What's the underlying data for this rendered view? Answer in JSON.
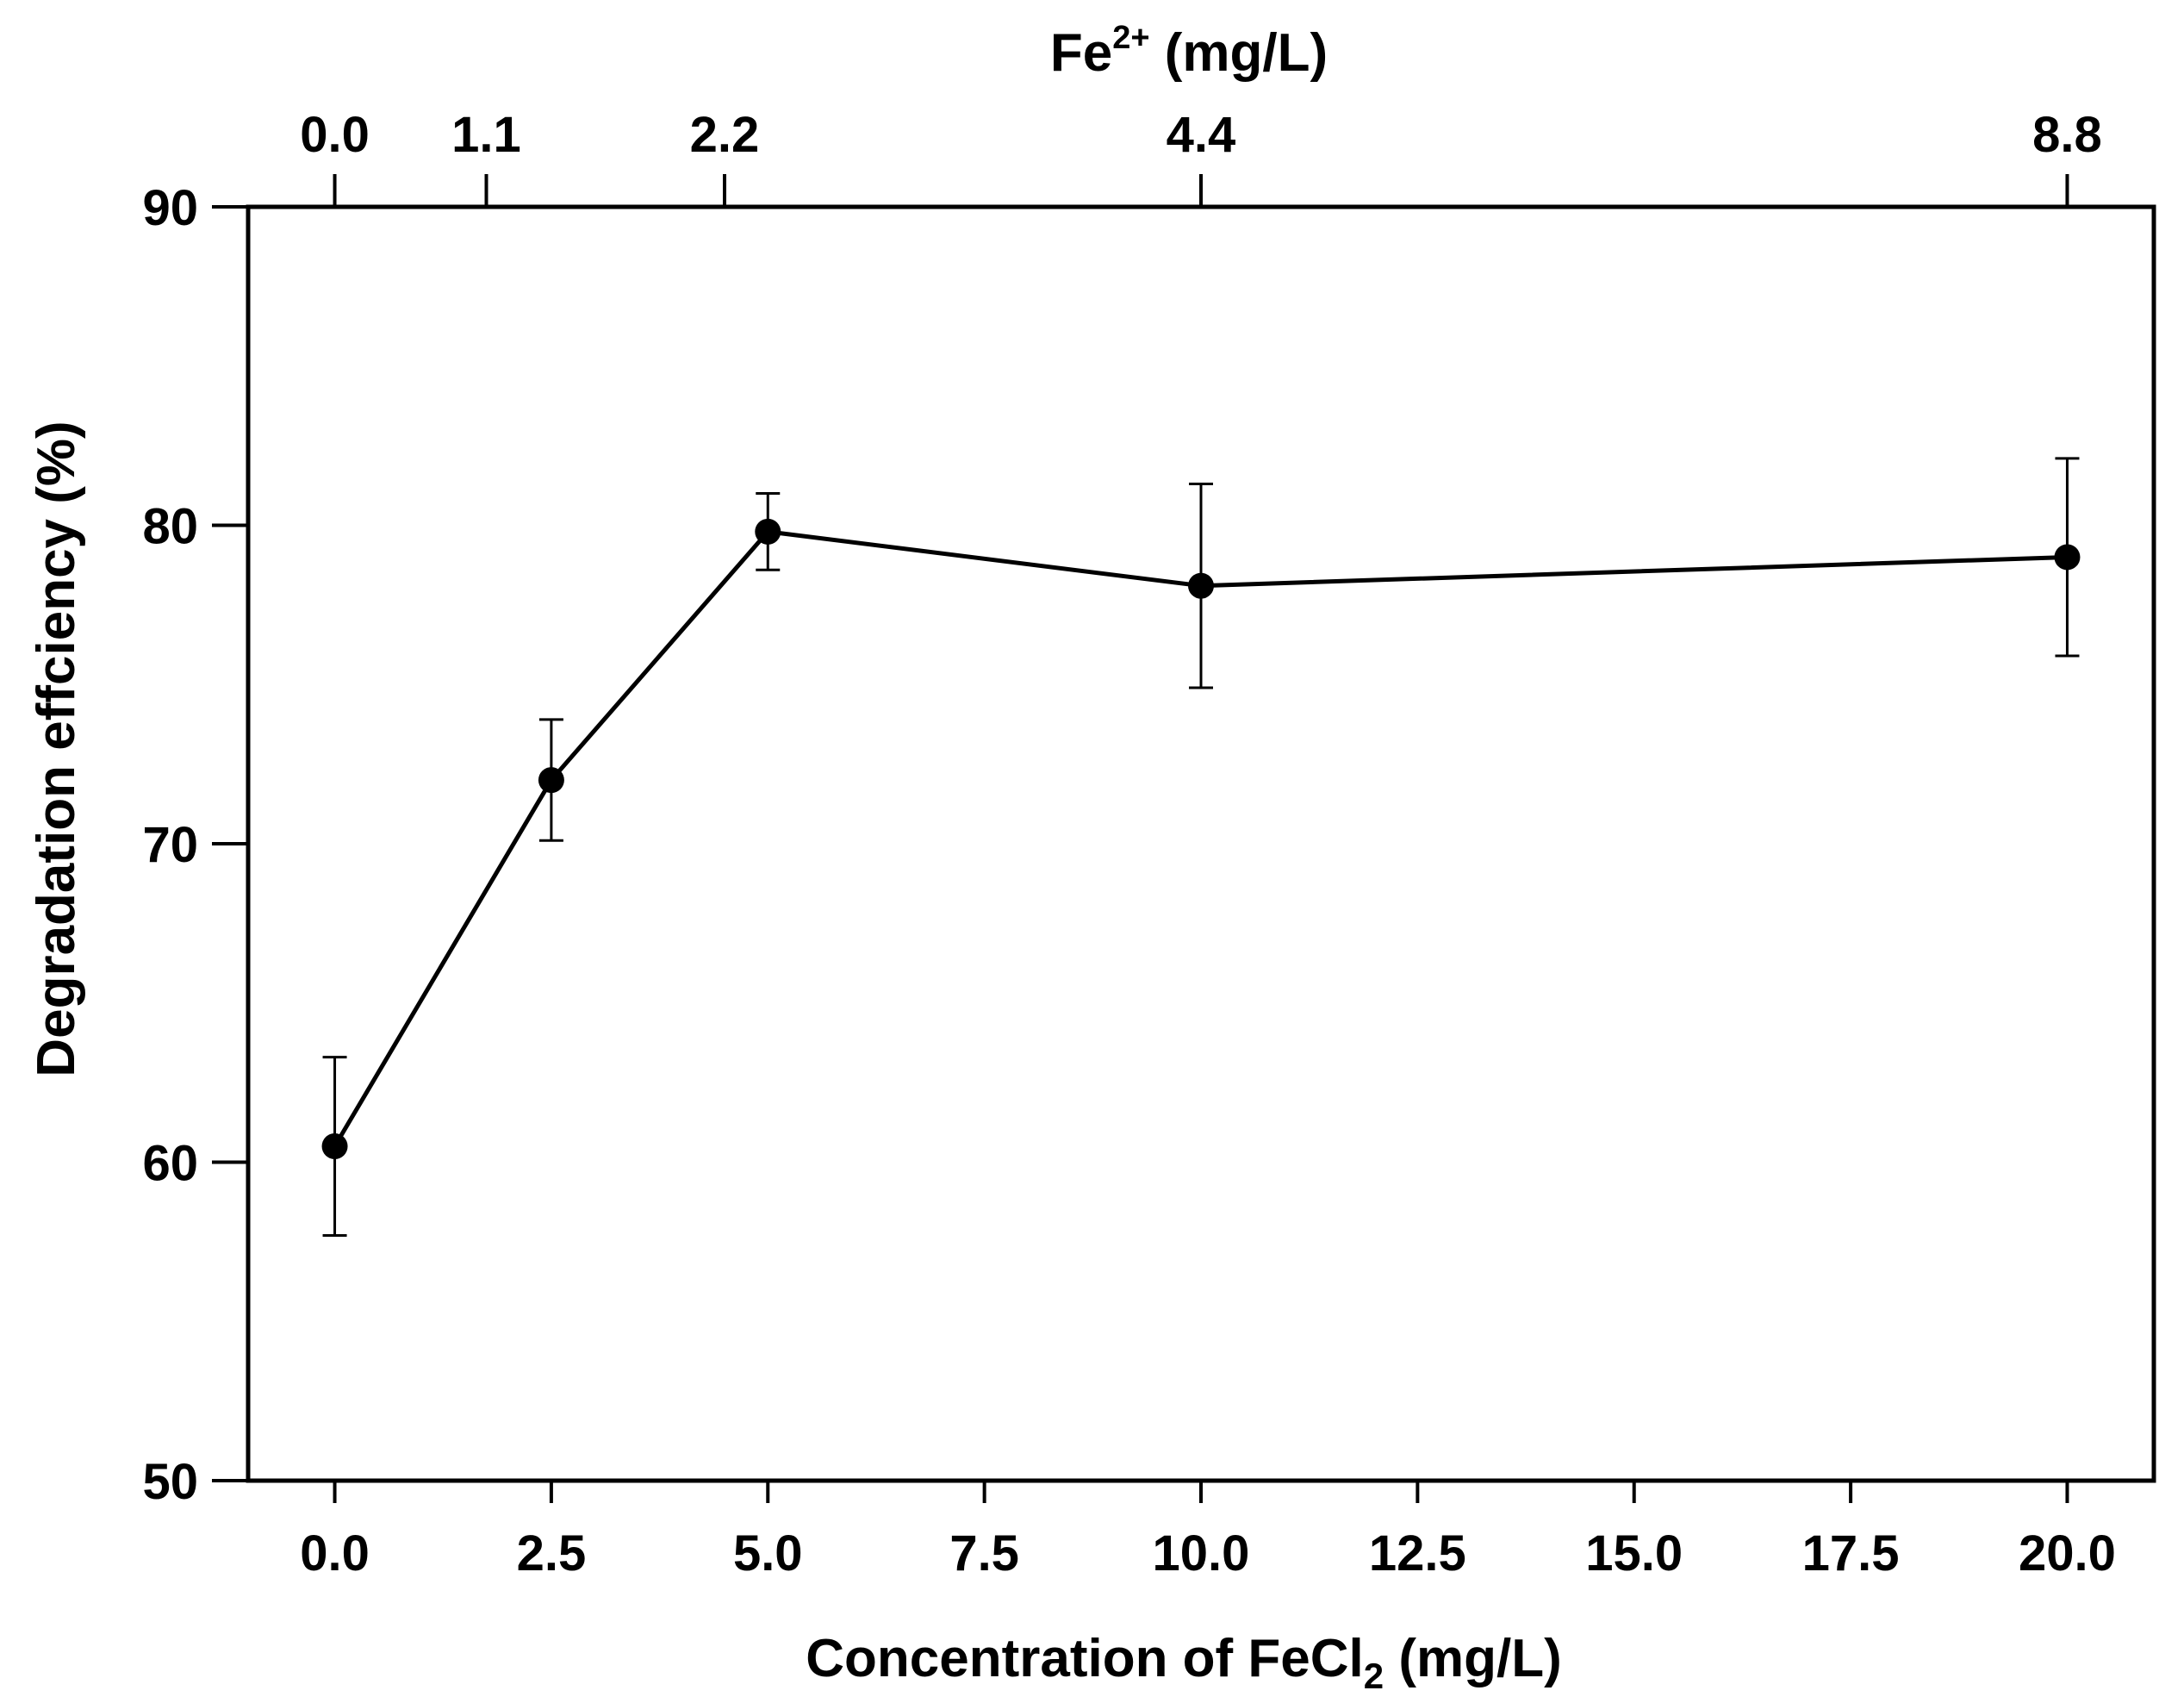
{
  "chart_data": {
    "type": "line",
    "title": "",
    "xlabel": {
      "main": "Concentration of FeCl",
      "subscript": "2",
      "unit": " (mg/L)"
    },
    "ylabel": "Degradation effciency (%)",
    "top_xlabel": {
      "main": "Fe",
      "superscript": "2+",
      "unit": " (mg/L)"
    },
    "xlim": [
      -1,
      21
    ],
    "ylim": [
      50,
      90
    ],
    "x_ticks": [
      0,
      2.5,
      5,
      7.5,
      10,
      12.5,
      15,
      17.5,
      20
    ],
    "x_tick_labels": [
      "0.0",
      "2.5",
      "5.0",
      "7.5",
      "10.0",
      "12.5",
      "15.0",
      "17.5",
      "20.0"
    ],
    "y_ticks": [
      50,
      60,
      70,
      80,
      90
    ],
    "y_tick_labels": [
      "50",
      "60",
      "70",
      "80",
      "90"
    ],
    "top_ticks": [
      {
        "x": 0,
        "label": "0.0"
      },
      {
        "x": 1.75,
        "label": "1.1"
      },
      {
        "x": 4.5,
        "label": "2.2"
      },
      {
        "x": 10,
        "label": "4.4"
      },
      {
        "x": 20,
        "label": "8.8"
      }
    ],
    "series": [
      {
        "name": "Degradation efficiency",
        "x": [
          0,
          2.5,
          5,
          10,
          20
        ],
        "values": [
          60.5,
          72.0,
          79.8,
          78.1,
          79.0
        ],
        "error": [
          2.8,
          1.9,
          1.2,
          3.2,
          3.1
        ]
      }
    ]
  }
}
